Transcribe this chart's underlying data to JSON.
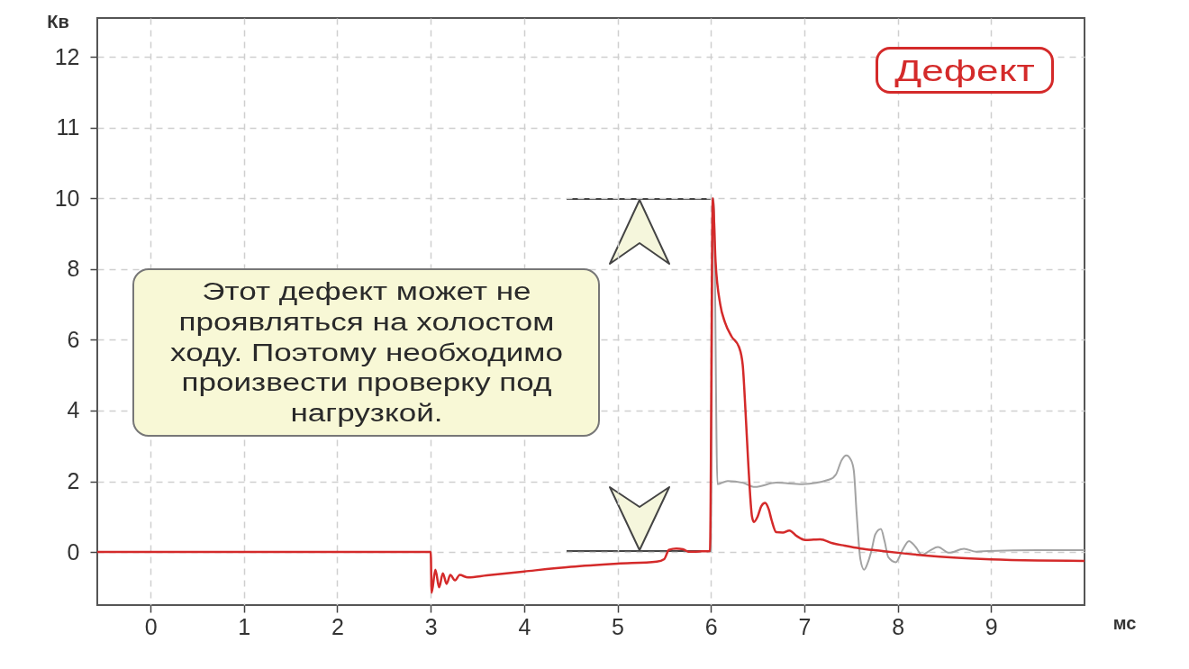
{
  "chart_data": {
    "type": "line",
    "xlabel": "мс",
    "y2label": "Кв",
    "xlim": [
      -0.57,
      10
    ],
    "ylim": [
      -1.5,
      15.1
    ],
    "y2lim": [
      4.25,
      12.55
    ],
    "xticks": [
      0,
      1,
      2,
      3,
      4,
      5,
      6,
      7,
      8,
      9
    ],
    "yticks": [
      0,
      2,
      4,
      6,
      8,
      10
    ],
    "y2ticks": [
      11,
      12
    ],
    "grid": true,
    "series": [
      {
        "color": "#a3a3a3",
        "x": [
          6.0,
          6.03,
          6.07,
          6.18,
          6.34,
          6.47,
          6.7,
          6.98,
          7.27,
          7.34,
          7.4,
          7.45,
          7.5,
          7.53,
          7.56,
          7.6,
          7.64,
          7.68,
          7.72,
          7.76,
          7.82,
          7.86,
          7.9,
          7.98,
          8.05,
          8.12,
          8.19,
          8.26,
          8.35,
          8.43,
          8.55,
          8.71,
          8.84,
          8.97,
          9.5,
          10.0
        ],
        "values": [
          0.03,
          10,
          1.92,
          2.01,
          1.96,
          1.84,
          1.96,
          1.92,
          2.05,
          2.2,
          2.6,
          2.73,
          2.6,
          2.3,
          1.1,
          -0.2,
          -0.5,
          -0.3,
          0.05,
          0.5,
          0.65,
          0.3,
          -0.15,
          -0.29,
          0.05,
          0.31,
          0.15,
          -0.08,
          0.05,
          0.14,
          -0.02,
          0.09,
          0.01,
          0.03,
          0.05,
          0.05
        ]
      },
      {
        "color": "#d42a2a",
        "x": [
          -0.57,
          3.0,
          3.01,
          3.05,
          3.09,
          3.13,
          3.17,
          3.21,
          3.26,
          3.31,
          3.4,
          3.6,
          4.0,
          4.5,
          5.0,
          5.42,
          5.5,
          5.55,
          5.63,
          5.7,
          5.76,
          5.9,
          5.99,
          6.02,
          6.05,
          6.1,
          6.15,
          6.22,
          6.3,
          6.34,
          6.37,
          6.4,
          6.44,
          6.46,
          6.5,
          6.54,
          6.58,
          6.62,
          6.65,
          6.7,
          6.77,
          6.84,
          6.92,
          7.01,
          7.1,
          7.17,
          7.3,
          7.43,
          7.6,
          7.8,
          8.0,
          8.3,
          8.6,
          9.0,
          9.5,
          10.0
        ],
        "values": [
          0,
          0,
          -1.15,
          -0.5,
          -1.0,
          -0.6,
          -0.9,
          -0.65,
          -0.8,
          -0.65,
          -0.72,
          -0.66,
          -0.55,
          -0.42,
          -0.33,
          -0.27,
          -0.2,
          0.06,
          0.1,
          0.08,
          0.01,
          0.02,
          0.03,
          10,
          8.2,
          7.0,
          6.5,
          6.1,
          5.8,
          5.3,
          4.0,
          2.5,
          1.0,
          0.85,
          1.0,
          1.3,
          1.39,
          1.2,
          0.9,
          0.56,
          0.55,
          0.61,
          0.45,
          0.34,
          0.35,
          0.36,
          0.25,
          0.18,
          0.1,
          0.04,
          -0.02,
          -0.1,
          -0.16,
          -0.21,
          -0.24,
          -0.25
        ]
      }
    ],
    "annotations": [
      "Дефект",
      "Этот дефект может не проявляться на холостом ходу. Поэтому необходимо произвести проверку под нагрузкой."
    ]
  }
}
